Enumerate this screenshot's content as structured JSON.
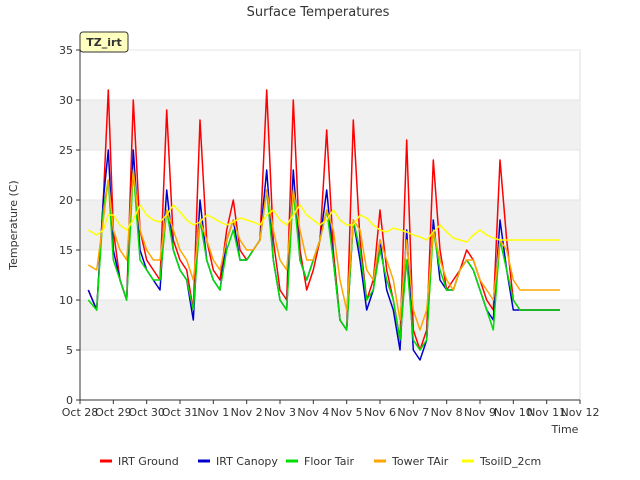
{
  "chart_data": {
    "type": "line",
    "title": "Surface Temperatures",
    "xlabel": "Time",
    "ylabel": "Temperature (C)",
    "badge": "TZ_irt",
    "ylim": [
      0,
      35
    ],
    "yticks": [
      0,
      5,
      10,
      15,
      20,
      25,
      30,
      35
    ],
    "xlim": [
      0,
      15
    ],
    "xticks": [
      "Oct 28",
      "Oct 29",
      "Oct 30",
      "Oct 31",
      "Nov 1",
      "Nov 2",
      "Nov 3",
      "Nov 4",
      "Nov 5",
      "Nov 6",
      "Nov 7",
      "Nov 8",
      "Nov 9",
      "Nov 10",
      "Nov 11",
      "Nov 12"
    ],
    "grid": "horizontal bands",
    "legend_position": "bottom",
    "series": [
      {
        "name": "IRT Ground",
        "color": "#ff0000",
        "x": [
          0.25,
          0.5,
          0.7,
          0.85,
          1.0,
          1.2,
          1.4,
          1.6,
          1.8,
          2.0,
          2.2,
          2.4,
          2.6,
          2.8,
          3.0,
          3.2,
          3.4,
          3.6,
          3.8,
          4.0,
          4.2,
          4.4,
          4.6,
          4.8,
          5.0,
          5.2,
          5.4,
          5.6,
          5.8,
          6.0,
          6.2,
          6.4,
          6.6,
          6.8,
          7.0,
          7.2,
          7.4,
          7.6,
          7.8,
          8.0,
          8.2,
          8.4,
          8.6,
          8.8,
          9.0,
          9.2,
          9.4,
          9.6,
          9.8,
          10.0,
          10.2,
          10.4,
          10.6,
          10.8,
          11.0,
          11.2,
          11.4,
          11.6,
          11.8,
          12.0,
          12.2,
          12.4,
          12.6,
          12.8,
          13.0,
          13.2,
          13.4,
          13.6,
          13.8,
          14.0,
          14.2,
          14.4
        ],
        "y": [
          11,
          9,
          20,
          31,
          17,
          12,
          10,
          30,
          17,
          14,
          13,
          12,
          29,
          16,
          14,
          13,
          9,
          28,
          16,
          13,
          12,
          17,
          20,
          15,
          14,
          15,
          16,
          31,
          16,
          11,
          10,
          30,
          15,
          11,
          13,
          16,
          27,
          15,
          8,
          7,
          28,
          16,
          10,
          12,
          19,
          13,
          10,
          6,
          26,
          7,
          5,
          7,
          24,
          15,
          11,
          12,
          13,
          15,
          14,
          12,
          10,
          9,
          24,
          16,
          10,
          9,
          9,
          9,
          9,
          9,
          9,
          9
        ]
      },
      {
        "name": "IRT Canopy",
        "color": "#0000cc",
        "x": [
          0.25,
          0.5,
          0.7,
          0.85,
          1.0,
          1.2,
          1.4,
          1.6,
          1.8,
          2.0,
          2.2,
          2.4,
          2.6,
          2.8,
          3.0,
          3.2,
          3.4,
          3.6,
          3.8,
          4.0,
          4.2,
          4.4,
          4.6,
          4.8,
          5.0,
          5.2,
          5.4,
          5.6,
          5.8,
          6.0,
          6.2,
          6.4,
          6.6,
          6.8,
          7.0,
          7.2,
          7.4,
          7.6,
          7.8,
          8.0,
          8.2,
          8.4,
          8.6,
          8.8,
          9.0,
          9.2,
          9.4,
          9.6,
          9.8,
          10.0,
          10.2,
          10.4,
          10.6,
          10.8,
          11.0,
          11.2,
          11.4,
          11.6,
          11.8,
          12.0,
          12.2,
          12.4,
          12.6,
          12.8,
          13.0,
          13.2,
          13.4,
          13.6,
          13.8,
          14.0,
          14.2,
          14.4
        ],
        "y": [
          11,
          9,
          20,
          25,
          15,
          12,
          10,
          25,
          15,
          13,
          12,
          11,
          21,
          15,
          13,
          12,
          8,
          20,
          14,
          12,
          11,
          16,
          18,
          14,
          14,
          15,
          16,
          23,
          14,
          10,
          9,
          23,
          14,
          12,
          14,
          16,
          21,
          14,
          8,
          7,
          18,
          14,
          9,
          11,
          16,
          11,
          9,
          5,
          17,
          5,
          4,
          6,
          18,
          12,
          11,
          11,
          13,
          14,
          13,
          11,
          9,
          8,
          18,
          13,
          9,
          9,
          9,
          9,
          9,
          9,
          9,
          9
        ]
      },
      {
        "name": "Floor Tair",
        "color": "#00dd00",
        "x": [
          0.25,
          0.5,
          0.7,
          0.85,
          1.0,
          1.2,
          1.4,
          1.6,
          1.8,
          2.0,
          2.2,
          2.4,
          2.6,
          2.8,
          3.0,
          3.2,
          3.4,
          3.6,
          3.8,
          4.0,
          4.2,
          4.4,
          4.6,
          4.8,
          5.0,
          5.2,
          5.4,
          5.6,
          5.8,
          6.0,
          6.2,
          6.4,
          6.6,
          6.8,
          7.0,
          7.2,
          7.4,
          7.6,
          7.8,
          8.0,
          8.2,
          8.4,
          8.6,
          8.8,
          9.0,
          9.2,
          9.4,
          9.6,
          9.8,
          10.0,
          10.2,
          10.4,
          10.6,
          10.8,
          11.0,
          11.2,
          11.4,
          11.6,
          11.8,
          12.0,
          12.2,
          12.4,
          12.6,
          12.8,
          13.0,
          13.2,
          13.4,
          13.6,
          13.8,
          14.0,
          14.2,
          14.4
        ],
        "y": [
          10,
          9,
          19,
          22,
          14,
          12,
          10,
          23,
          14,
          13,
          12,
          12,
          19,
          15,
          13,
          12,
          9,
          18,
          14,
          12,
          11,
          15,
          17,
          14,
          14,
          15,
          16,
          21,
          14,
          10,
          9,
          21,
          14,
          12,
          14,
          16,
          19,
          14,
          8,
          7,
          18,
          15,
          10,
          11,
          15,
          12,
          10,
          6,
          14,
          6,
          5,
          6,
          17,
          13,
          11,
          11,
          13,
          14,
          13,
          11,
          9,
          7,
          16,
          13,
          10,
          9,
          9,
          9,
          9,
          9,
          9,
          9
        ]
      },
      {
        "name": "Tower TAir",
        "color": "#ffa500",
        "x": [
          0.25,
          0.5,
          0.7,
          0.85,
          1.0,
          1.2,
          1.4,
          1.6,
          1.8,
          2.0,
          2.2,
          2.4,
          2.6,
          2.8,
          3.0,
          3.2,
          3.4,
          3.6,
          3.8,
          4.0,
          4.2,
          4.4,
          4.6,
          4.8,
          5.0,
          5.2,
          5.4,
          5.6,
          5.8,
          6.0,
          6.2,
          6.4,
          6.6,
          6.8,
          7.0,
          7.2,
          7.4,
          7.6,
          7.8,
          8.0,
          8.2,
          8.4,
          8.6,
          8.8,
          9.0,
          9.2,
          9.4,
          9.6,
          9.8,
          10.0,
          10.2,
          10.4,
          10.6,
          10.8,
          11.0,
          11.2,
          11.4,
          11.6,
          11.8,
          12.0,
          12.2,
          12.4,
          12.6,
          12.8,
          13.0,
          13.2,
          13.4,
          13.6,
          13.8,
          14.0,
          14.2,
          14.4
        ],
        "y": [
          13.5,
          13,
          18,
          22,
          17,
          15,
          14,
          23,
          17,
          15,
          14,
          14,
          19,
          17,
          15,
          14,
          12,
          18,
          16,
          14,
          13,
          16,
          18,
          16,
          15,
          15,
          16,
          21,
          17,
          14,
          13,
          21,
          17,
          14,
          14,
          16,
          19,
          17,
          12,
          9,
          18,
          17,
          13,
          12,
          16,
          14,
          12,
          8,
          16,
          9,
          7,
          9,
          17,
          14,
          12,
          11,
          13,
          14,
          14,
          12,
          11,
          10,
          16,
          15,
          12,
          11,
          11,
          11,
          11,
          11,
          11,
          11
        ]
      },
      {
        "name": "TsoilD_2cm",
        "color": "#ffff00",
        "x": [
          0.25,
          0.5,
          0.7,
          0.85,
          1.0,
          1.2,
          1.4,
          1.6,
          1.8,
          2.0,
          2.2,
          2.4,
          2.6,
          2.8,
          3.0,
          3.2,
          3.4,
          3.6,
          3.8,
          4.0,
          4.2,
          4.4,
          4.6,
          4.8,
          5.0,
          5.2,
          5.4,
          5.6,
          5.8,
          6.0,
          6.2,
          6.4,
          6.6,
          6.8,
          7.0,
          7.2,
          7.4,
          7.6,
          7.8,
          8.0,
          8.2,
          8.4,
          8.6,
          8.8,
          9.0,
          9.2,
          9.4,
          9.6,
          9.8,
          10.0,
          10.2,
          10.4,
          10.6,
          10.8,
          11.0,
          11.2,
          11.4,
          11.6,
          11.8,
          12.0,
          12.2,
          12.4,
          12.6,
          12.8,
          13.0,
          13.2,
          13.4,
          13.6,
          13.8,
          14.0,
          14.2,
          14.4
        ],
        "y": [
          17,
          16.5,
          17,
          18.5,
          18.5,
          17.5,
          17,
          18,
          19.5,
          18.5,
          18,
          17.8,
          18.5,
          19.5,
          18.8,
          18,
          17.5,
          17.8,
          18.5,
          18.2,
          17.8,
          17.5,
          17.8,
          18.2,
          18,
          17.8,
          17.5,
          18.5,
          19,
          18,
          17.5,
          18.5,
          19.5,
          18.5,
          18,
          17.5,
          18,
          19,
          18,
          17.5,
          17.5,
          18.5,
          18.2,
          17.5,
          17,
          16.8,
          17.2,
          17,
          16.8,
          16.5,
          16.3,
          16,
          16.8,
          17.5,
          16.8,
          16.2,
          16,
          15.8,
          16.5,
          17,
          16.5,
          16.2,
          16,
          16,
          16,
          16,
          16,
          16,
          16,
          16,
          16,
          16
        ]
      }
    ]
  }
}
